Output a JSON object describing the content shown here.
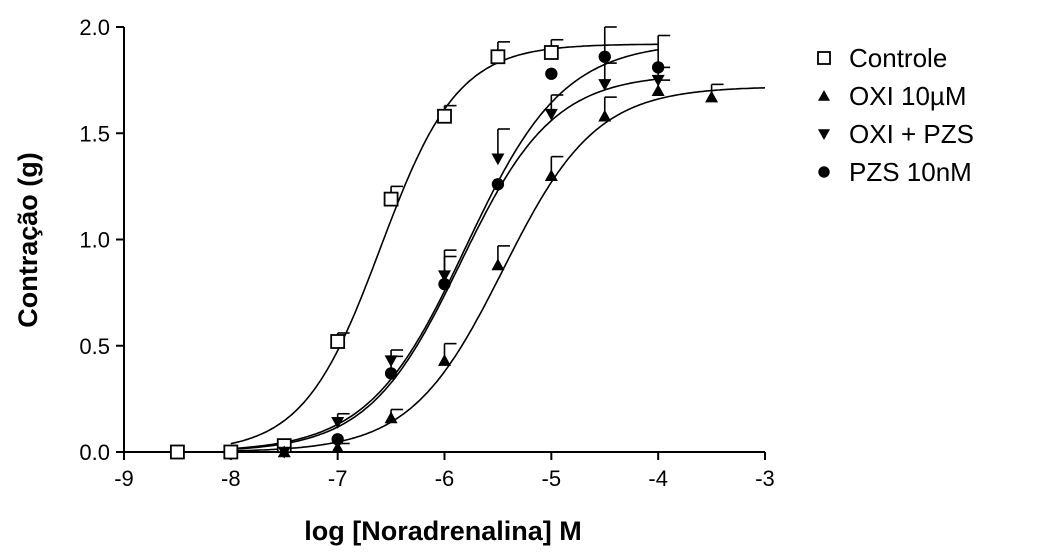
{
  "chart_data": {
    "type": "scatter",
    "title": "",
    "xlabel": "log [Noradrenalina] M",
    "ylabel": "Contração (g)",
    "xlim": [
      -9,
      -3
    ],
    "ylim": [
      0.0,
      2.0
    ],
    "x_ticks": [
      -9,
      -8,
      -7,
      -6,
      -5,
      -4,
      -3
    ],
    "x_tick_labels": [
      "-9",
      "-8",
      "-7",
      "-6",
      "-5",
      "-4",
      "-3"
    ],
    "y_ticks": [
      0.0,
      0.5,
      1.0,
      1.5,
      2.0
    ],
    "y_tick_labels": [
      "0.0",
      "0.5",
      "1.0",
      "1.5",
      "2.0"
    ],
    "grid": false,
    "legend_position": "right",
    "series": [
      {
        "name": "Controle",
        "marker": "open-square",
        "points": [
          {
            "x": -8.5,
            "y": 0.0,
            "err": 0.0
          },
          {
            "x": -8.0,
            "y": 0.0,
            "err": 0.0
          },
          {
            "x": -7.5,
            "y": 0.03,
            "err": 0.0
          },
          {
            "x": -7.0,
            "y": 0.52,
            "err": 0.04
          },
          {
            "x": -6.5,
            "y": 1.19,
            "err": 0.06
          },
          {
            "x": -6.0,
            "y": 1.58,
            "err": 0.05
          },
          {
            "x": -5.5,
            "y": 1.86,
            "err": 0.07
          },
          {
            "x": -5.0,
            "y": 1.88,
            "err": 0.06
          }
        ],
        "fit": {
          "bottom": 0.0,
          "top": 1.92,
          "logEC50": -6.6,
          "hill": 1.2
        }
      },
      {
        "name": "OXI 10µM",
        "marker": "triangle-up",
        "points": [
          {
            "x": -7.5,
            "y": 0.0,
            "err": 0.0
          },
          {
            "x": -7.0,
            "y": 0.02,
            "err": 0.02
          },
          {
            "x": -6.5,
            "y": 0.16,
            "err": 0.04
          },
          {
            "x": -6.0,
            "y": 0.43,
            "err": 0.08
          },
          {
            "x": -5.5,
            "y": 0.88,
            "err": 0.09
          },
          {
            "x": -5.0,
            "y": 1.3,
            "err": 0.09
          },
          {
            "x": -4.5,
            "y": 1.58,
            "err": 0.09
          },
          {
            "x": -4.0,
            "y": 1.7,
            "err": 0.05
          },
          {
            "x": -3.5,
            "y": 1.67,
            "err": 0.06
          }
        ],
        "fit": {
          "bottom": 0.0,
          "top": 1.72,
          "logEC50": -5.45,
          "hill": 1.0
        }
      },
      {
        "name": "OXI + PZS",
        "marker": "triangle-down",
        "points": [
          {
            "x": -7.5,
            "y": 0.0,
            "err": 0.0
          },
          {
            "x": -7.0,
            "y": 0.14,
            "err": 0.04
          },
          {
            "x": -6.5,
            "y": 0.43,
            "err": 0.05
          },
          {
            "x": -6.0,
            "y": 0.83,
            "err": 0.12
          },
          {
            "x": -5.5,
            "y": 1.38,
            "err": 0.14
          },
          {
            "x": -5.0,
            "y": 1.59,
            "err": 0.09
          },
          {
            "x": -4.5,
            "y": 1.73,
            "err": 0.1
          },
          {
            "x": -4.0,
            "y": 1.75,
            "err": 0.06
          }
        ],
        "fit": {
          "bottom": 0.0,
          "top": 1.78,
          "logEC50": -5.85,
          "hill": 1.0
        }
      },
      {
        "name": "PZS 10nM",
        "marker": "filled-circle",
        "points": [
          {
            "x": -7.0,
            "y": 0.06,
            "err": 0.0
          },
          {
            "x": -6.5,
            "y": 0.37,
            "err": 0.08
          },
          {
            "x": -6.0,
            "y": 0.79,
            "err": 0.13
          },
          {
            "x": -5.5,
            "y": 1.26,
            "err": 0.0
          },
          {
            "x": -5.0,
            "y": 1.78,
            "err": 0.0
          },
          {
            "x": -4.5,
            "y": 1.86,
            "err": 0.14
          },
          {
            "x": -4.0,
            "y": 1.81,
            "err": 0.15
          }
        ],
        "fit": {
          "bottom": 0.0,
          "top": 1.93,
          "logEC50": -5.8,
          "hill": 0.95
        }
      }
    ]
  }
}
